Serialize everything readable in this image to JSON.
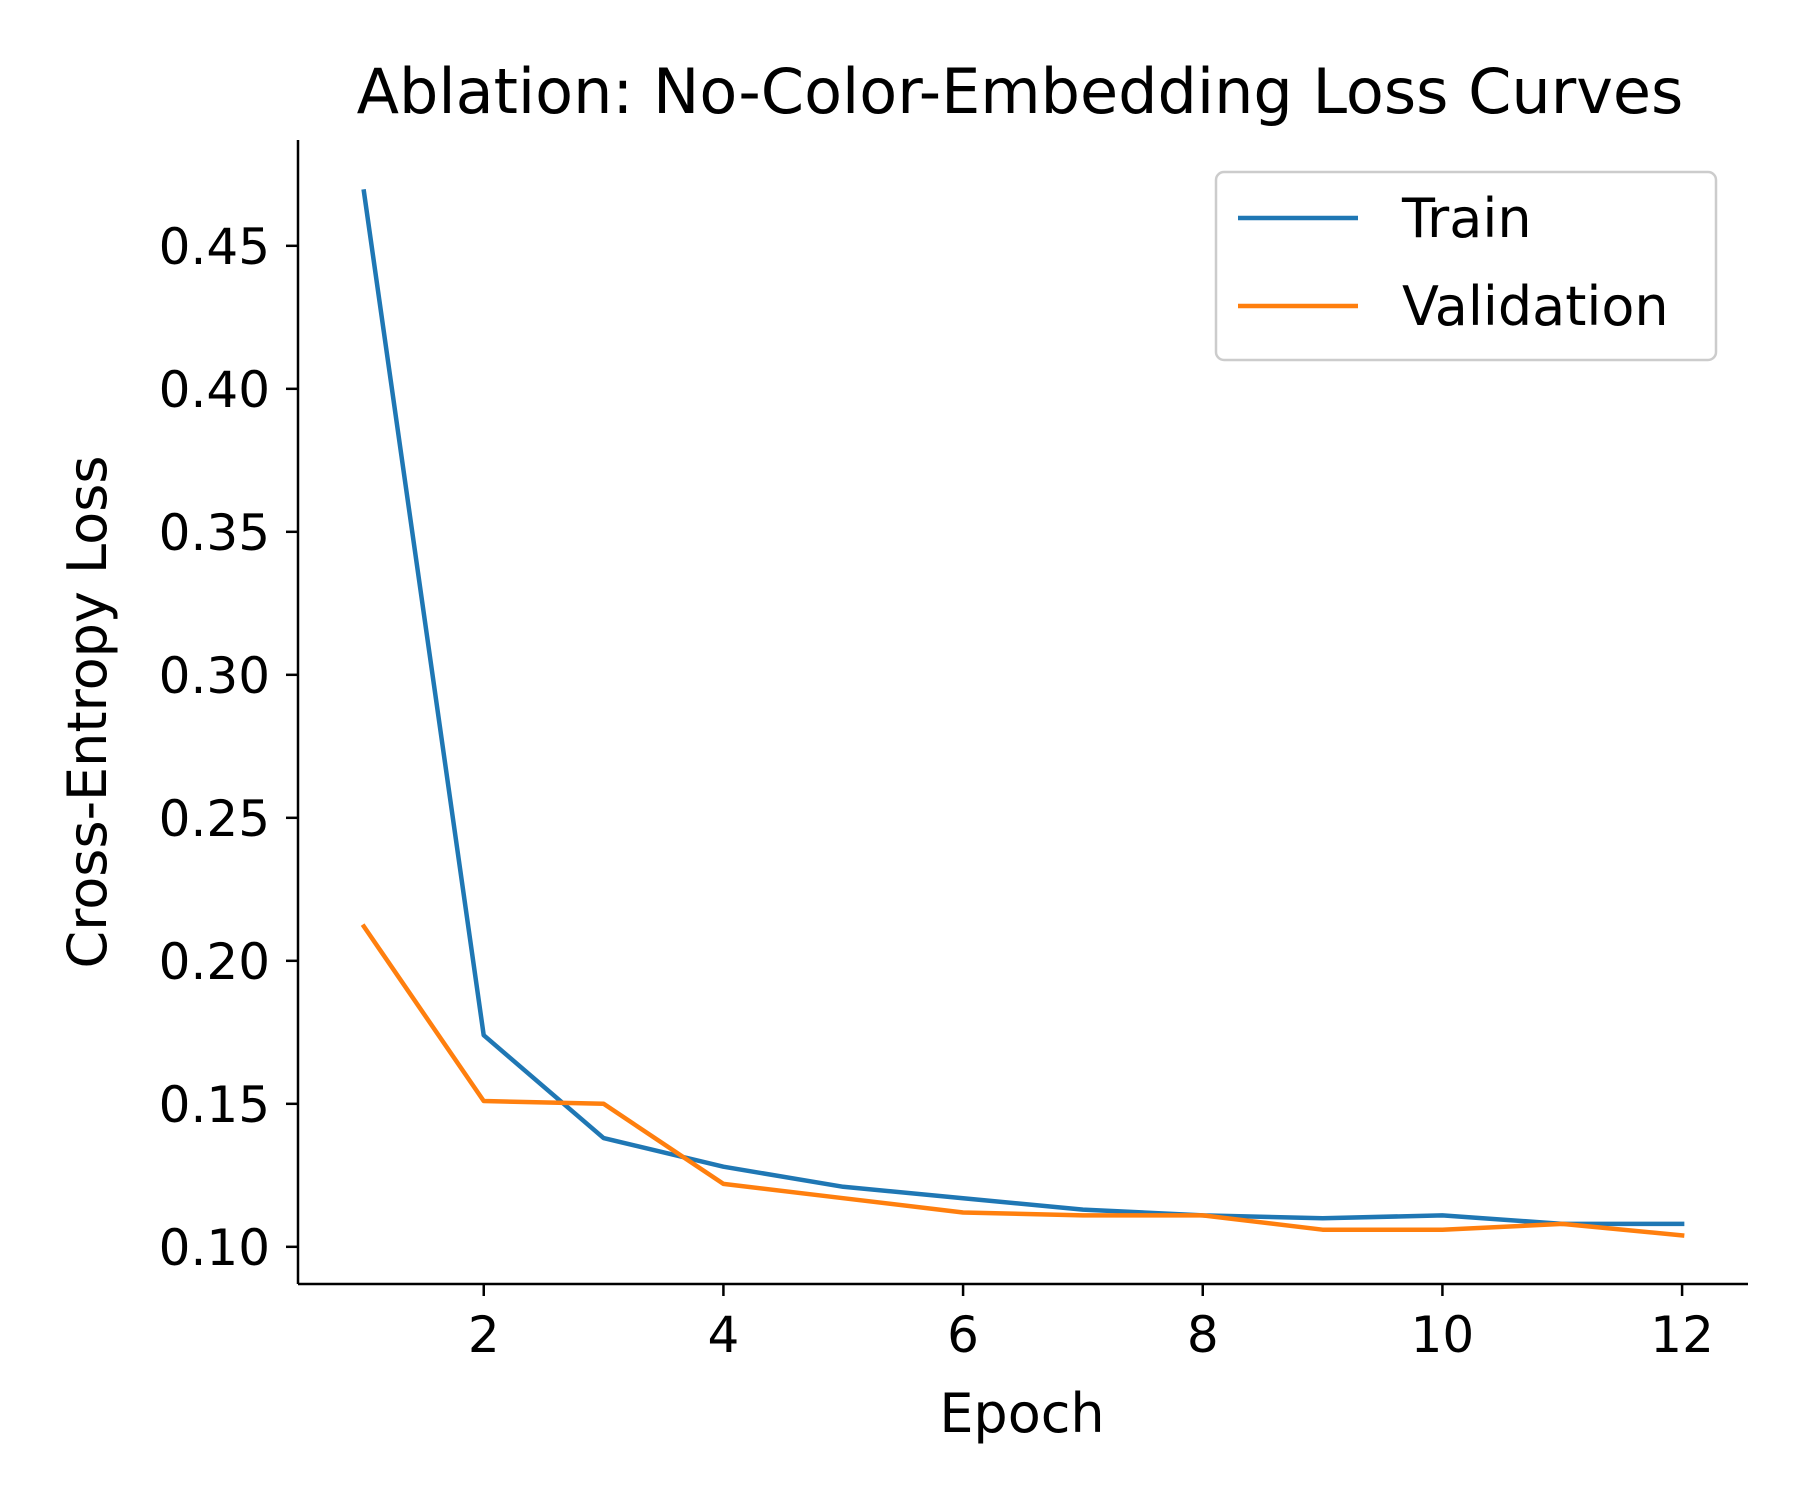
{
  "chart_data": {
    "type": "line",
    "title": "Ablation: No-Color-Embedding Loss Curves",
    "xlabel": "Epoch",
    "ylabel": "Cross-Entropy Loss",
    "x": [
      1,
      2,
      3,
      4,
      5,
      6,
      7,
      8,
      9,
      10,
      11,
      12
    ],
    "xlim": [
      0.45,
      12.55
    ],
    "ylim": [
      0.087,
      0.487
    ],
    "xticks": [
      2,
      4,
      6,
      8,
      10,
      12
    ],
    "xtick_labels": [
      "2",
      "4",
      "6",
      "8",
      "10",
      "12"
    ],
    "yticks": [
      0.1,
      0.15,
      0.2,
      0.25,
      0.3,
      0.35,
      0.4,
      0.45
    ],
    "ytick_labels": [
      "0.10",
      "0.15",
      "0.20",
      "0.25",
      "0.30",
      "0.35",
      "0.40",
      "0.45"
    ],
    "grid": false,
    "legend_position": "top-right",
    "series": [
      {
        "name": "Train",
        "color": "#1f77b4",
        "values": [
          0.469,
          0.174,
          0.138,
          0.128,
          0.121,
          0.117,
          0.113,
          0.111,
          0.11,
          0.111,
          0.108,
          0.108
        ]
      },
      {
        "name": "Validation",
        "color": "#ff7f0e",
        "values": [
          0.212,
          0.151,
          0.15,
          0.122,
          0.117,
          0.112,
          0.111,
          0.111,
          0.106,
          0.106,
          0.108,
          0.104
        ]
      }
    ]
  }
}
